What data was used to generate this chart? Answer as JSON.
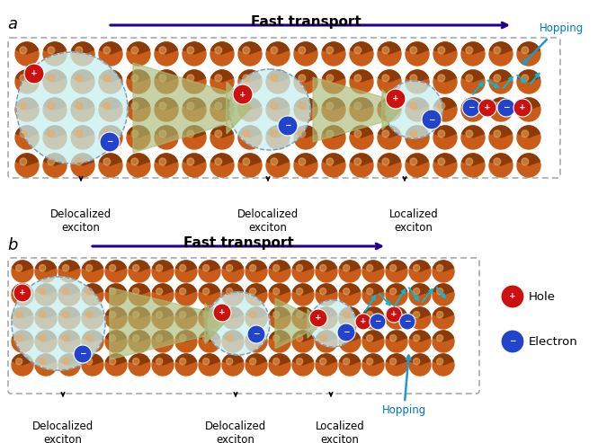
{
  "panel_a_label": "a",
  "panel_b_label": "b",
  "fast_transport_a": "Fast transport",
  "fast_transport_b": "Fast transport",
  "hopping_a": "Hopping",
  "hopping_b": "Hopping",
  "labels_a": [
    "Delocalized\nexciton",
    "Delocalized\nexciton",
    "Localized\nexciton"
  ],
  "labels_b": [
    "Delocalized\nexciton",
    "Delocalized\nexciton",
    "Localized\nexciton"
  ],
  "legend_hole": "Hole",
  "legend_electron": "Electron",
  "bg_color": "#ffffff",
  "dot_color_base": "#c85c18",
  "dot_color_dark": "#8b3a08",
  "dot_highlight": "#f0aa60",
  "delocalized_fill": "#c8f0ee",
  "delocalized_stroke": "#7799bb",
  "arrow_color_transport": "#220088",
  "arrow_color_hopping": "#00bbdd",
  "hole_color": "#cc1111",
  "electron_color": "#2244cc",
  "box_dash_color": "#999999",
  "funnel_color": "#aabb88"
}
